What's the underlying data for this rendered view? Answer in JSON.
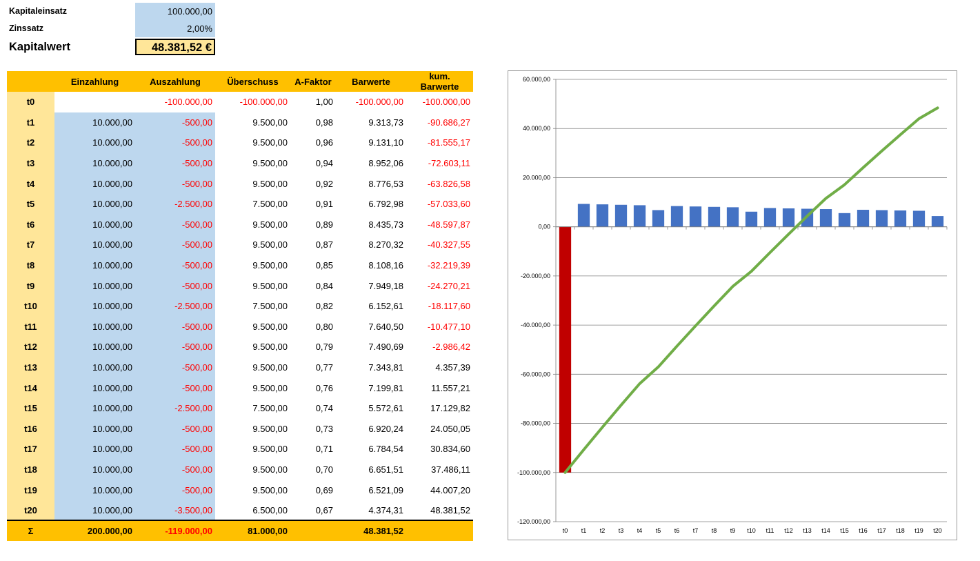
{
  "summary": {
    "kapitaleinsatz_label": "Kapitaleinsatz",
    "kapitaleinsatz_value": "100.000,00",
    "zinssatz_label": "Zinssatz",
    "zinssatz_value": "2,00%",
    "kapitalwert_label": "Kapitalwert",
    "kapitalwert_value": "48.381,52 €"
  },
  "table": {
    "headers": [
      "",
      "Einzahlung",
      "Auszahlung",
      "Überschuss",
      "A-Faktor",
      "Barwerte",
      "kum. Barwerte"
    ],
    "rows": [
      {
        "period": "t0",
        "einzahlung": "",
        "auszahlung": "-100.000,00",
        "ueberschuss": "-100.000,00",
        "afaktor": "1,00",
        "barwert": "-100.000,00",
        "kum": "-100.000,00"
      },
      {
        "period": "t1",
        "einzahlung": "10.000,00",
        "auszahlung": "-500,00",
        "ueberschuss": "9.500,00",
        "afaktor": "0,98",
        "barwert": "9.313,73",
        "kum": "-90.686,27"
      },
      {
        "period": "t2",
        "einzahlung": "10.000,00",
        "auszahlung": "-500,00",
        "ueberschuss": "9.500,00",
        "afaktor": "0,96",
        "barwert": "9.131,10",
        "kum": "-81.555,17"
      },
      {
        "period": "t3",
        "einzahlung": "10.000,00",
        "auszahlung": "-500,00",
        "ueberschuss": "9.500,00",
        "afaktor": "0,94",
        "barwert": "8.952,06",
        "kum": "-72.603,11"
      },
      {
        "period": "t4",
        "einzahlung": "10.000,00",
        "auszahlung": "-500,00",
        "ueberschuss": "9.500,00",
        "afaktor": "0,92",
        "barwert": "8.776,53",
        "kum": "-63.826,58"
      },
      {
        "period": "t5",
        "einzahlung": "10.000,00",
        "auszahlung": "-2.500,00",
        "ueberschuss": "7.500,00",
        "afaktor": "0,91",
        "barwert": "6.792,98",
        "kum": "-57.033,60"
      },
      {
        "period": "t6",
        "einzahlung": "10.000,00",
        "auszahlung": "-500,00",
        "ueberschuss": "9.500,00",
        "afaktor": "0,89",
        "barwert": "8.435,73",
        "kum": "-48.597,87"
      },
      {
        "period": "t7",
        "einzahlung": "10.000,00",
        "auszahlung": "-500,00",
        "ueberschuss": "9.500,00",
        "afaktor": "0,87",
        "barwert": "8.270,32",
        "kum": "-40.327,55"
      },
      {
        "period": "t8",
        "einzahlung": "10.000,00",
        "auszahlung": "-500,00",
        "ueberschuss": "9.500,00",
        "afaktor": "0,85",
        "barwert": "8.108,16",
        "kum": "-32.219,39"
      },
      {
        "period": "t9",
        "einzahlung": "10.000,00",
        "auszahlung": "-500,00",
        "ueberschuss": "9.500,00",
        "afaktor": "0,84",
        "barwert": "7.949,18",
        "kum": "-24.270,21"
      },
      {
        "period": "t10",
        "einzahlung": "10.000,00",
        "auszahlung": "-2.500,00",
        "ueberschuss": "7.500,00",
        "afaktor": "0,82",
        "barwert": "6.152,61",
        "kum": "-18.117,60"
      },
      {
        "period": "t11",
        "einzahlung": "10.000,00",
        "auszahlung": "-500,00",
        "ueberschuss": "9.500,00",
        "afaktor": "0,80",
        "barwert": "7.640,50",
        "kum": "-10.477,10"
      },
      {
        "period": "t12",
        "einzahlung": "10.000,00",
        "auszahlung": "-500,00",
        "ueberschuss": "9.500,00",
        "afaktor": "0,79",
        "barwert": "7.490,69",
        "kum": "-2.986,42"
      },
      {
        "period": "t13",
        "einzahlung": "10.000,00",
        "auszahlung": "-500,00",
        "ueberschuss": "9.500,00",
        "afaktor": "0,77",
        "barwert": "7.343,81",
        "kum": "4.357,39"
      },
      {
        "period": "t14",
        "einzahlung": "10.000,00",
        "auszahlung": "-500,00",
        "ueberschuss": "9.500,00",
        "afaktor": "0,76",
        "barwert": "7.199,81",
        "kum": "11.557,21"
      },
      {
        "period": "t15",
        "einzahlung": "10.000,00",
        "auszahlung": "-2.500,00",
        "ueberschuss": "7.500,00",
        "afaktor": "0,74",
        "barwert": "5.572,61",
        "kum": "17.129,82"
      },
      {
        "period": "t16",
        "einzahlung": "10.000,00",
        "auszahlung": "-500,00",
        "ueberschuss": "9.500,00",
        "afaktor": "0,73",
        "barwert": "6.920,24",
        "kum": "24.050,05"
      },
      {
        "period": "t17",
        "einzahlung": "10.000,00",
        "auszahlung": "-500,00",
        "ueberschuss": "9.500,00",
        "afaktor": "0,71",
        "barwert": "6.784,54",
        "kum": "30.834,60"
      },
      {
        "period": "t18",
        "einzahlung": "10.000,00",
        "auszahlung": "-500,00",
        "ueberschuss": "9.500,00",
        "afaktor": "0,70",
        "barwert": "6.651,51",
        "kum": "37.486,11"
      },
      {
        "period": "t19",
        "einzahlung": "10.000,00",
        "auszahlung": "-500,00",
        "ueberschuss": "9.500,00",
        "afaktor": "0,69",
        "barwert": "6.521,09",
        "kum": "44.007,20"
      },
      {
        "period": "t20",
        "einzahlung": "10.000,00",
        "auszahlung": "-3.500,00",
        "ueberschuss": "6.500,00",
        "afaktor": "0,67",
        "barwert": "4.374,31",
        "kum": "48.381,52"
      }
    ],
    "totals": {
      "label": "Σ",
      "einzahlung": "200.000,00",
      "auszahlung": "-119.000,00",
      "ueberschuss": "81.000,00",
      "afaktor": "",
      "barwert": "48.381,52",
      "kum": ""
    }
  },
  "colors": {
    "header": "#ffc000",
    "period_col": "#ffe699",
    "input_blue": "#bdd7ee",
    "negative_text": "#ff0000",
    "bar_positive": "#4472c4",
    "bar_negative": "#c00000",
    "line": "#70ad47"
  },
  "chart_data": {
    "type": "bar",
    "categories": [
      "t0",
      "t1",
      "t2",
      "t3",
      "t4",
      "t5",
      "t6",
      "t7",
      "t8",
      "t9",
      "t10",
      "t11",
      "t12",
      "t13",
      "t14",
      "t15",
      "t16",
      "t17",
      "t18",
      "t19",
      "t20"
    ],
    "series": [
      {
        "type": "bar",
        "values": [
          -100000,
          9313.73,
          9131.1,
          8952.06,
          8776.53,
          6792.98,
          8435.73,
          8270.32,
          8108.16,
          7949.18,
          6152.61,
          7640.5,
          7490.69,
          7343.81,
          7199.81,
          5572.61,
          6920.24,
          6784.54,
          6651.51,
          6521.09,
          4374.31
        ]
      },
      {
        "type": "line",
        "values": [
          -100000,
          -90686.27,
          -81555.17,
          -72603.11,
          -63826.58,
          -57033.6,
          -48597.87,
          -40327.55,
          -32219.39,
          -24270.21,
          -18117.6,
          -10477.1,
          -2986.42,
          4357.39,
          11557.21,
          17129.82,
          24050.05,
          30834.6,
          37486.11,
          44007.2,
          48381.52
        ]
      }
    ],
    "ylim": [
      -120000,
      60000
    ],
    "yticks": [
      60000,
      40000,
      20000,
      0,
      -20000,
      -40000,
      -60000,
      -80000,
      -100000,
      -120000
    ],
    "ytick_labels": [
      "60.000,00",
      "40.000,00",
      "20.000,00",
      "0,00",
      "-20.000,00",
      "-40.000,00",
      "-60.000,00",
      "-80.000,00",
      "-100.000,00",
      "-120.000,00"
    ],
    "grid": true,
    "legend": "none",
    "title": "",
    "xlabel": "",
    "ylabel": ""
  }
}
